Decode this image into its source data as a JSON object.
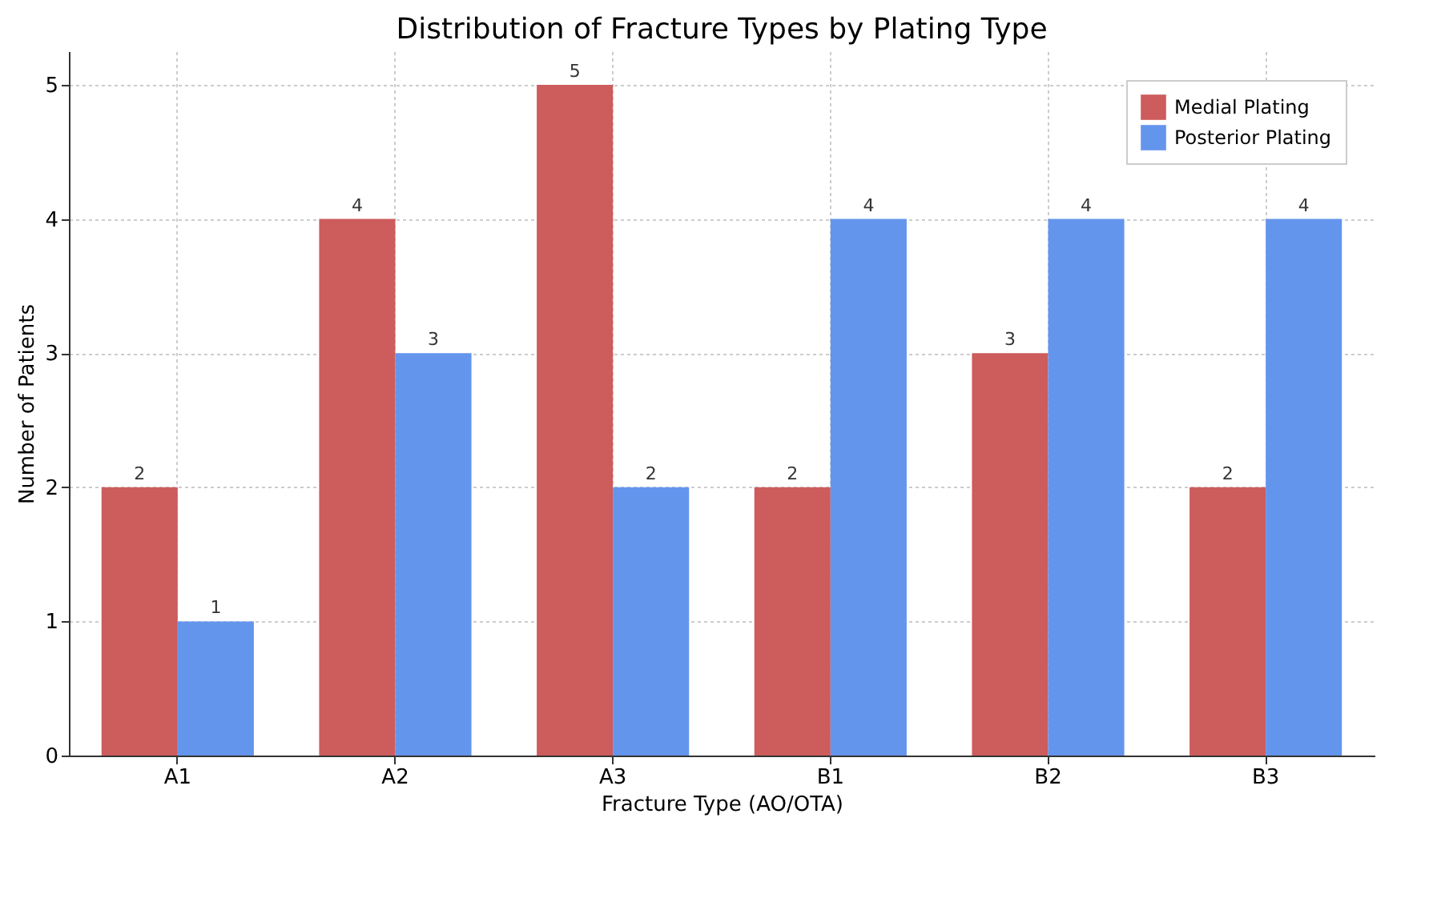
{
  "chart_data": {
    "type": "bar",
    "title": "Distribution of Fracture Types by Plating Type",
    "xlabel": "Fracture Type (AO/OTA)",
    "ylabel": "Number of Patients",
    "categories": [
      "A1",
      "A2",
      "A3",
      "B1",
      "B2",
      "B3"
    ],
    "series": [
      {
        "name": "Medial Plating",
        "color": "#cd5c5c",
        "values": [
          2,
          4,
          5,
          2,
          3,
          2
        ]
      },
      {
        "name": "Posterior Plating",
        "color": "#6495ed",
        "values": [
          1,
          3,
          2,
          4,
          4,
          4
        ]
      }
    ],
    "ylim": [
      0,
      5.25
    ],
    "yticks": [
      0,
      1,
      2,
      3,
      4,
      5
    ],
    "grid": true,
    "legend": "top right",
    "data_labels": true
  }
}
